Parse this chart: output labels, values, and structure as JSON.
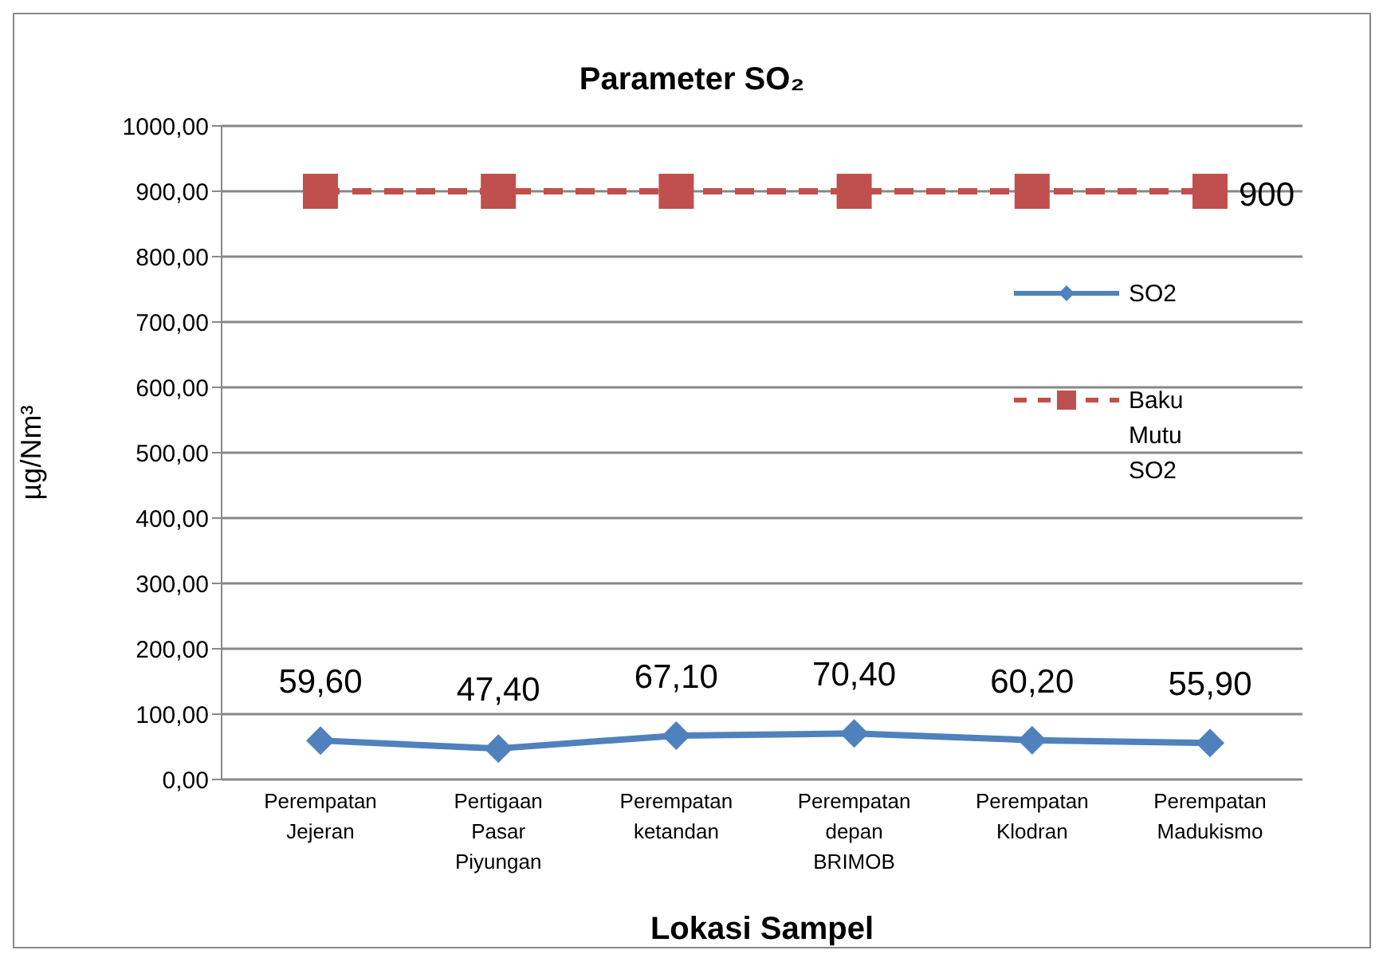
{
  "chart_data": {
    "type": "line",
    "title": "Parameter SO₂",
    "xlabel": "Lokasi Sampel",
    "ylabel": "µg/Nm³",
    "categories": [
      "Perempatan Jejeran",
      "Pertigaan Pasar Piyungan",
      "Perempatan ketandan",
      "Perempatan depan BRIMOB",
      "Perempatan Klodran",
      "Perempatan Madukismo"
    ],
    "series": [
      {
        "name": "SO2",
        "color": "#4f81bd",
        "marker": "diamond",
        "line_style": "solid",
        "values": [
          59.6,
          47.4,
          67.1,
          70.4,
          60.2,
          55.9
        ],
        "value_labels": [
          "59,60",
          "47,40",
          "67,10",
          "70,40",
          "60,20",
          "55,90"
        ]
      },
      {
        "name": "Baku Mutu SO2",
        "color": "#c0504d",
        "marker": "square",
        "line_style": "dashed",
        "values": [
          900,
          900,
          900,
          900,
          900,
          900
        ],
        "value_labels": [
          null,
          null,
          null,
          null,
          null,
          "900"
        ]
      }
    ],
    "ylim": [
      0,
      1000
    ],
    "yticks": [
      {
        "value": 0,
        "label": "0,00"
      },
      {
        "value": 100,
        "label": "100,00"
      },
      {
        "value": 200,
        "label": "200,00"
      },
      {
        "value": 300,
        "label": "300,00"
      },
      {
        "value": 400,
        "label": "400,00"
      },
      {
        "value": 500,
        "label": "500,00"
      },
      {
        "value": 600,
        "label": "600,00"
      },
      {
        "value": 700,
        "label": "700,00"
      },
      {
        "value": 800,
        "label": "800,00"
      },
      {
        "value": 900,
        "label": "900,00"
      },
      {
        "value": 1000,
        "label": "1000,00"
      }
    ],
    "grid": "y",
    "legend": "right"
  }
}
